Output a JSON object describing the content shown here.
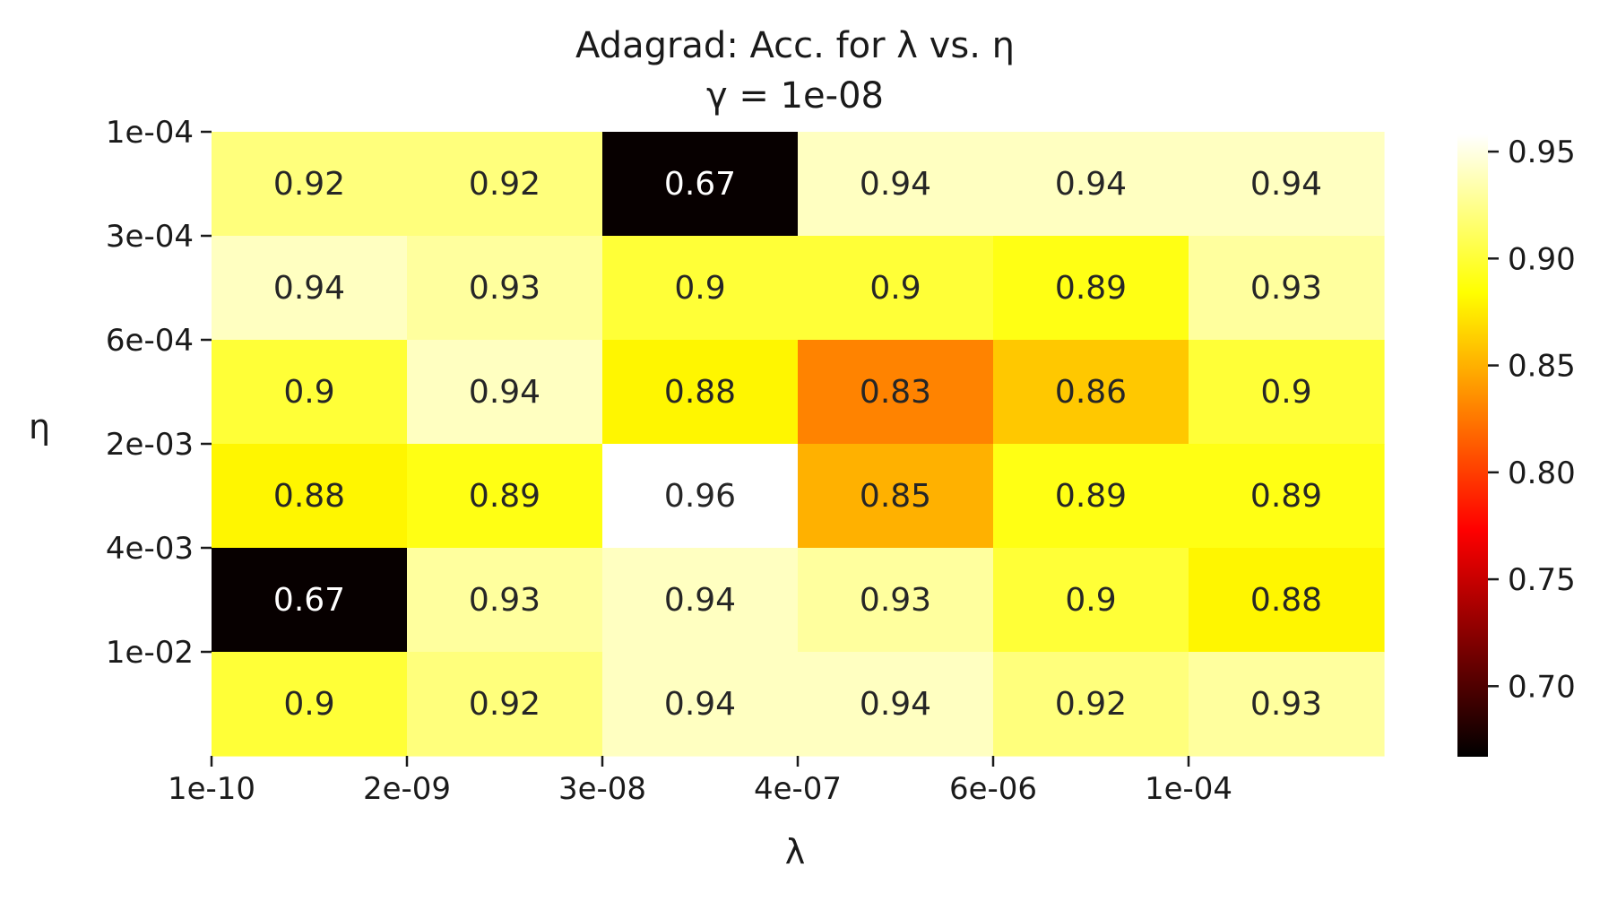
{
  "chart_data": {
    "type": "heatmap",
    "title": "Adagrad: Acc. for λ vs. η",
    "subtitle": "γ = 1e-08",
    "xlabel": "λ",
    "ylabel": "η",
    "x_tick_labels": [
      "1e-10",
      "2e-09",
      "3e-08",
      "4e-07",
      "6e-06",
      "1e-04"
    ],
    "y_tick_labels": [
      "1e-04",
      "3e-04",
      "6e-04",
      "2e-03",
      "4e-03",
      "1e-02"
    ],
    "values": [
      [
        0.92,
        0.92,
        0.67,
        0.94,
        0.94,
        0.94
      ],
      [
        0.94,
        0.93,
        0.9,
        0.9,
        0.89,
        0.93
      ],
      [
        0.9,
        0.94,
        0.88,
        0.83,
        0.86,
        0.9
      ],
      [
        0.88,
        0.89,
        0.96,
        0.85,
        0.89,
        0.89
      ],
      [
        0.67,
        0.93,
        0.94,
        0.93,
        0.9,
        0.88
      ],
      [
        0.9,
        0.92,
        0.94,
        0.94,
        0.92,
        0.93
      ]
    ],
    "cell_labels": [
      [
        "0.92",
        "0.92",
        "0.67",
        "0.94",
        "0.94",
        "0.94"
      ],
      [
        "0.94",
        "0.93",
        "0.9",
        "0.9",
        "0.89",
        "0.93"
      ],
      [
        "0.9",
        "0.94",
        "0.88",
        "0.83",
        "0.86",
        "0.9"
      ],
      [
        "0.88",
        "0.89",
        "0.96",
        "0.85",
        "0.89",
        "0.89"
      ],
      [
        "0.67",
        "0.93",
        "0.94",
        "0.93",
        "0.9",
        "0.88"
      ],
      [
        "0.9",
        "0.92",
        "0.94",
        "0.94",
        "0.92",
        "0.93"
      ]
    ],
    "colormap": "hot",
    "color_range": [
      0.667,
      0.958
    ],
    "colorbar_ticks": [
      "0.70",
      "0.75",
      "0.80",
      "0.85",
      "0.90",
      "0.95"
    ],
    "colorbar_tick_values": [
      0.7,
      0.75,
      0.8,
      0.85,
      0.9,
      0.95
    ],
    "annotation_colors": {
      "dark": "#262626",
      "light": "#ffffff"
    }
  }
}
